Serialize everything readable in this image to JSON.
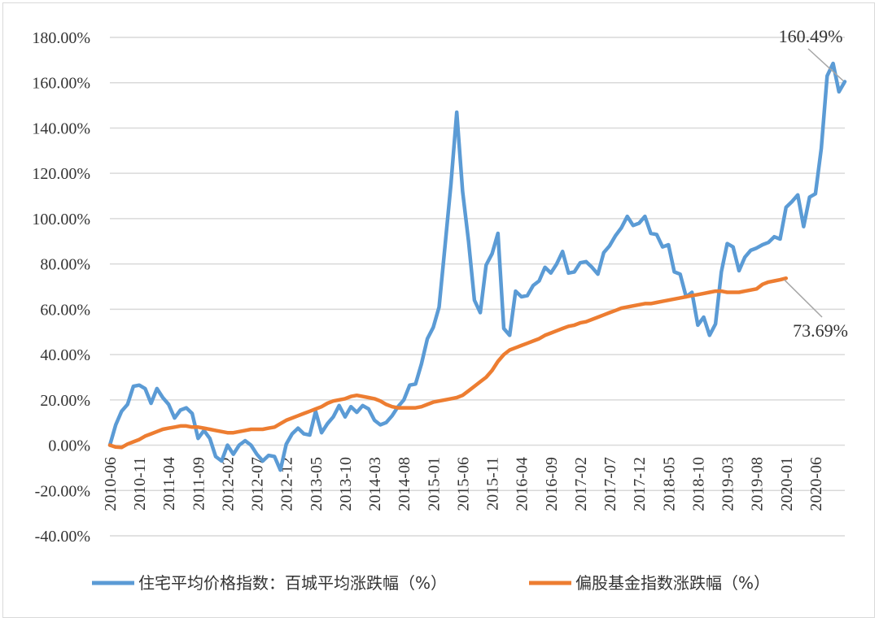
{
  "chart_data": {
    "type": "line",
    "ylim": [
      -40,
      180
    ],
    "y_tick_labels": [
      "180.00%",
      "160.00%",
      "140.00%",
      "120.00%",
      "100.00%",
      "80.00%",
      "60.00%",
      "40.00%",
      "20.00%",
      "0.00%",
      "-20.00%",
      "-40.00%"
    ],
    "y_tick_values": [
      180,
      160,
      140,
      120,
      100,
      80,
      60,
      40,
      20,
      0,
      -20,
      -40
    ],
    "x_tick_labels": [
      "2010-06",
      "2010-11",
      "2011-04",
      "2011-09",
      "2012-02",
      "2012-07",
      "2012-12",
      "2013-05",
      "2013-10",
      "2014-03",
      "2014-08",
      "2015-01",
      "2015-06",
      "2015-11",
      "2016-04",
      "2016-09",
      "2017-02",
      "2017-07",
      "2017-12",
      "2018-05",
      "2018-10",
      "2019-03",
      "2019-08",
      "2020-01",
      "2020-06"
    ],
    "x_tick_index": [
      0,
      5,
      10,
      15,
      20,
      25,
      30,
      35,
      40,
      45,
      50,
      55,
      60,
      65,
      70,
      75,
      80,
      85,
      90,
      95,
      100,
      105,
      110,
      115,
      120
    ],
    "grid": true,
    "legend_position": "bottom",
    "series": [
      {
        "name": "住宅平均价格指数：百城平均涨跌幅（%）",
        "color": "#5B9BD5",
        "values": [
          0,
          9,
          15,
          18,
          26,
          26.5,
          25,
          18.5,
          25,
          21,
          18,
          12,
          15.5,
          16.5,
          14,
          3,
          6.5,
          3,
          -5,
          -7,
          0,
          -4,
          0,
          2,
          0,
          -4,
          -7,
          -4.5,
          -5,
          -11,
          0.5,
          5,
          7.5,
          5,
          4.5,
          15,
          5.5,
          9.5,
          12.5,
          17.5,
          12.5,
          17,
          14.5,
          17.5,
          16,
          11,
          9,
          10,
          13,
          17,
          20,
          26.5,
          27,
          36,
          47,
          52,
          61,
          88,
          115,
          147,
          112,
          90,
          64,
          58.5,
          79.5,
          84.5,
          93.5,
          51.5,
          48.5,
          68,
          65.5,
          66,
          70.5,
          72.5,
          78.5,
          76,
          80,
          85.5,
          76,
          76.5,
          80.5,
          81,
          78.5,
          75.5,
          85,
          88,
          92.5,
          96,
          101,
          97,
          98,
          101,
          93.5,
          93,
          87.5,
          88.5,
          76.5,
          75.5,
          65.5,
          67.5,
          53,
          56.5,
          48.5,
          53.5,
          76.5,
          89,
          87.5,
          77,
          83,
          86,
          87,
          88.5,
          89.5,
          92,
          91,
          105,
          107.5,
          110.5,
          96.5,
          109.5,
          111,
          131,
          163,
          168.5,
          156,
          160.49
        ],
        "end_label": "160.49%"
      },
      {
        "name": "偏股基金指数涨跌幅（%）",
        "color": "#ED7D31",
        "values": [
          0,
          -0.8,
          -1,
          0.5,
          1.5,
          2.5,
          4,
          5,
          6,
          7,
          7.5,
          8,
          8.5,
          8.5,
          8,
          8,
          7.5,
          7,
          6.5,
          6,
          5.5,
          5.5,
          6,
          6.5,
          7,
          7,
          7,
          7.5,
          8,
          9.5,
          11,
          12,
          13,
          14,
          15,
          16,
          17,
          18.5,
          19.5,
          20,
          20.5,
          21.5,
          22,
          21.5,
          21,
          20.5,
          19.5,
          18,
          17,
          16.5,
          16.5,
          16.5,
          16.5,
          17,
          18,
          19,
          19.5,
          20,
          20.5,
          21,
          22,
          24,
          26,
          28,
          30,
          33,
          37,
          40,
          42,
          43,
          44,
          45,
          46,
          47,
          48.5,
          49.5,
          50.5,
          51.5,
          52.5,
          53,
          54,
          54.5,
          55.5,
          56.5,
          57.5,
          58.5,
          59.5,
          60.5,
          61,
          61.5,
          62,
          62.5,
          62.5,
          63,
          63.5,
          64,
          64.5,
          65,
          65.5,
          66,
          66.5,
          67,
          67.5,
          68,
          68,
          67.5,
          67.5,
          67.5,
          68,
          68.5,
          69,
          71,
          72,
          72.5,
          73,
          73.69
        ],
        "end_label": "73.69%"
      }
    ]
  }
}
